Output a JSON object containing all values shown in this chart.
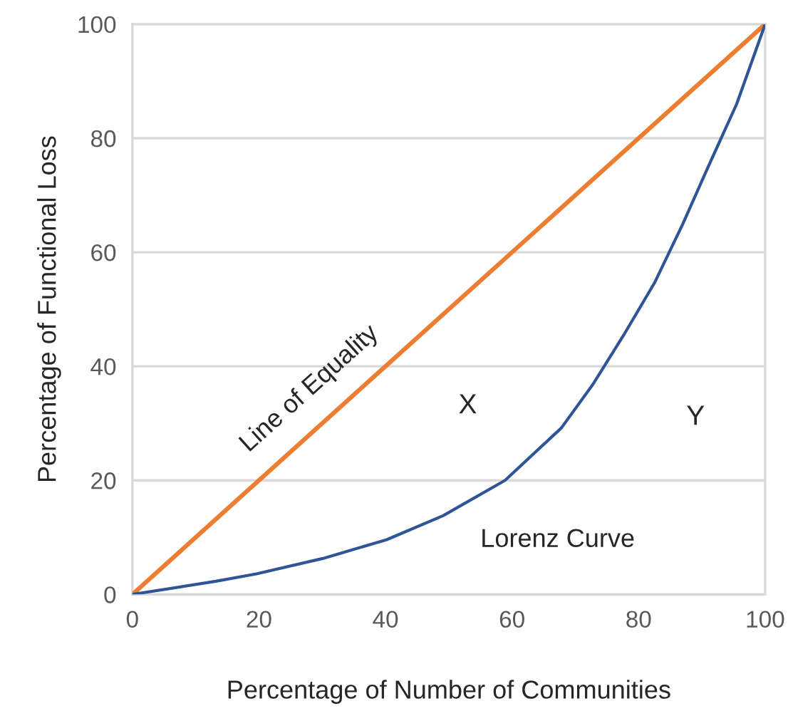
{
  "chart_data": {
    "type": "line",
    "xlabel": "Percentage of Number of Communities",
    "ylabel": "Percentage of Functional Loss",
    "xlim": [
      0,
      100
    ],
    "ylim": [
      0,
      100
    ],
    "xticks": [
      0,
      20,
      40,
      60,
      80,
      100
    ],
    "yticks": [
      0,
      20,
      40,
      60,
      80,
      100
    ],
    "grid": "y",
    "legend": false,
    "marker": "none",
    "line_style": "solid",
    "series": [
      {
        "name": "Line of Equality",
        "color": "#ed7d31",
        "x": [
          0,
          100
        ],
        "values": [
          0,
          100
        ]
      },
      {
        "name": "Lorenz Curve",
        "color": "#2f5597",
        "x": [
          0,
          13.2,
          19.6,
          30.1,
          40.2,
          49.1,
          58.9,
          67.8,
          72.7,
          77.6,
          82.5,
          87,
          91,
          95.5,
          100
        ],
        "values": [
          0,
          2.3,
          3.6,
          6.3,
          9.6,
          13.8,
          20,
          29.2,
          36.7,
          45.4,
          54.6,
          65,
          75,
          86,
          100
        ]
      }
    ],
    "annotations": [
      {
        "text": "X",
        "x": 53,
        "y": 33
      },
      {
        "text": "Y",
        "x": 89,
        "y": 31
      }
    ]
  }
}
